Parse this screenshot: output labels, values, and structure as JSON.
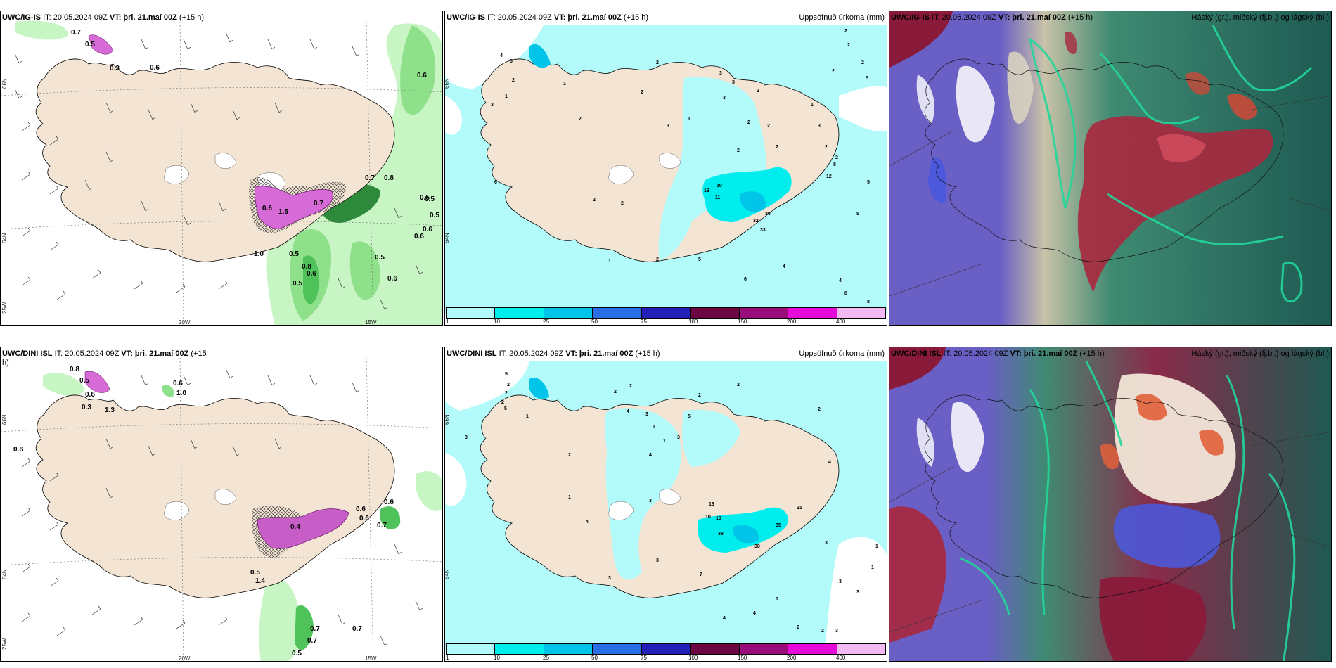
{
  "panels": [
    {
      "header_model": "UWC/IG-IS",
      "header_it": "IT: 20.05.2024 09Z",
      "header_vt": "VT: þri. 21.maí 00Z",
      "header_lead": "(+15 h)",
      "right_title": "",
      "lon_labels": [
        "20W",
        "15W"
      ],
      "lat_labels": [
        "66N",
        "64N",
        "25W"
      ],
      "values": [
        "0.7",
        "0.5",
        "0.3",
        "0.6",
        "0.6",
        "0.5",
        "0.5",
        "0.6",
        "0.6",
        "1.5",
        "0.6",
        "0.7",
        "0.8",
        "0.8",
        "0.5",
        "0.6",
        "1.0",
        "0.5",
        "0.5",
        "0.5",
        "0.6",
        "0.7"
      ]
    },
    {
      "header_model": "UWC/IG-IS",
      "header_it": "IT: 20.05.2024 09Z",
      "header_vt": "VT: þri. 21.maí 00Z",
      "header_lead": "(+15 h)",
      "right_title": "Uppsöfnuð úrkoma (mm)",
      "lat_labels": [
        "66N",
        "64N"
      ],
      "values": [
        "2",
        "2",
        "2",
        "5",
        "2",
        "2",
        "3",
        "3",
        "3",
        "2",
        "2",
        "3",
        "2",
        "2",
        "1",
        "1",
        "2",
        "2",
        "3",
        "2",
        "2",
        "12",
        "8",
        "5",
        "5",
        "13",
        "10",
        "11",
        "2",
        "32",
        "30",
        "33",
        "4",
        "5",
        "6",
        "4",
        "8",
        "8",
        "5",
        "2",
        "1",
        "2",
        "4",
        "5",
        "3",
        "6",
        "2",
        "1",
        "1",
        "2"
      ]
    },
    {
      "header_model": "UWC/IG-IS",
      "header_it": "IT: 20.05.2024 09Z",
      "header_vt": "VT: þri. 21.maí 00Z",
      "header_lead": "(+15 h)",
      "right_title": "Háský (gr.), miðský (fj.bl.) og lágský (bl.)"
    },
    {
      "header_model": "UWC/DINI ISL",
      "header_it": "IT: 20.05.2024 09Z",
      "header_vt": "VT: þri. 21.maí 00Z",
      "header_lead": "(+15",
      "header_wrap": "h)",
      "right_title": "",
      "lon_labels": [
        "20W",
        "15W"
      ],
      "lat_labels": [
        "66N",
        "64N",
        "25W"
      ],
      "values": [
        "0.8",
        "0.6",
        "0.5",
        "0.6",
        "1.0",
        "0.3",
        "0.6",
        "0.4",
        "1.3",
        "0.6",
        "0.6",
        "0.6",
        "0.7",
        "0.5",
        "1.4",
        "0.7",
        "0.7",
        "0.5",
        "0.7"
      ]
    },
    {
      "header_model": "UWC/DINI ISL",
      "header_it": "IT: 20.05.2024 09Z",
      "header_vt": "VT: þri. 21.maí 00Z",
      "header_lead": "(+15 h)",
      "right_title": "Uppsöfnuð úrkoma (mm)",
      "lat_labels": [
        "66N",
        "64N"
      ],
      "values": [
        "5",
        "2",
        "2",
        "2",
        "1",
        "5",
        "3",
        "2",
        "4",
        "2",
        "3",
        "1",
        "1",
        "4",
        "3",
        "5",
        "2",
        "2",
        "2",
        "4",
        "13",
        "10",
        "10",
        "21",
        "35",
        "38",
        "38",
        "3",
        "3",
        "7",
        "3",
        "1",
        "4",
        "4",
        "2",
        "2",
        "2",
        "1",
        "3",
        "1",
        "3",
        "1",
        "4",
        "3",
        "3",
        "2"
      ]
    },
    {
      "header_model": "UWC/DINI ISL",
      "header_it": "IT: 20.05.2024 09Z",
      "header_vt": "VT: þri. 21.maí 00Z",
      "header_lead": "(+15 h)",
      "right_title": "Háský (gr.), miðský (fj.bl.) og lágský (bl.)"
    }
  ],
  "colorbar": {
    "ticks": [
      "1",
      "10",
      "25",
      "50",
      "75",
      "100",
      "150",
      "200",
      "400"
    ],
    "colors": [
      "#b3fafa",
      "#00eded",
      "#00c4e8",
      "#2a6ee6",
      "#2320b8",
      "#6a0640",
      "#990c7a",
      "#e60ad8",
      "#f4b9f2"
    ]
  }
}
